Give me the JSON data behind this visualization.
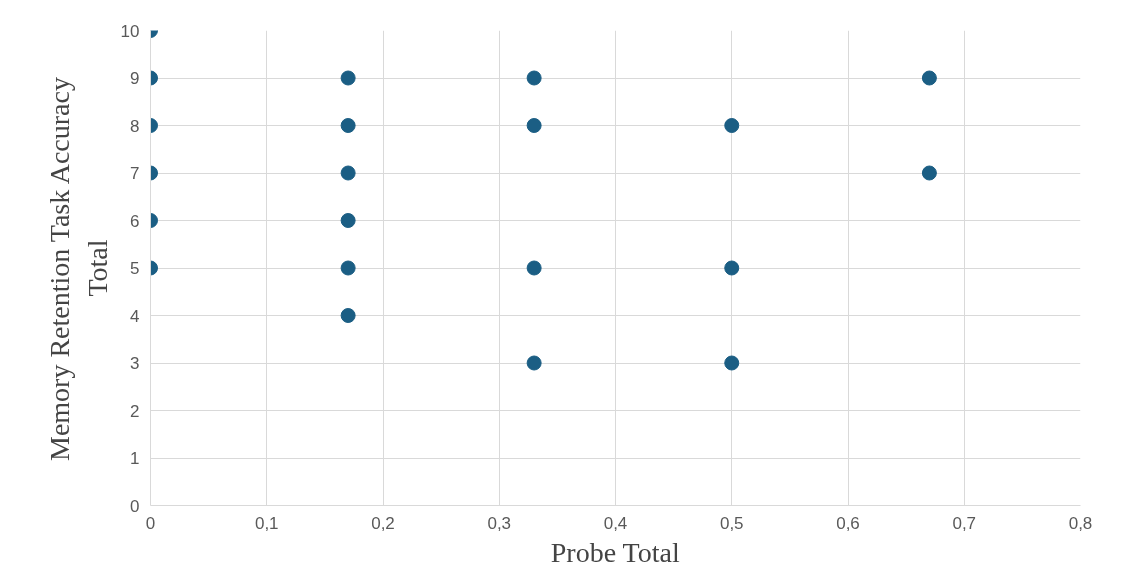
{
  "chart_data": {
    "type": "scatter",
    "xlabel": "Probe Total",
    "ylabel": "Memory Retention Task Accuracy\nTotal",
    "series": [
      {
        "color": "#1b5e84",
        "x": [
          0,
          0,
          0,
          0,
          0,
          0,
          0.17,
          0.17,
          0.17,
          0.17,
          0.17,
          0.17,
          0.33,
          0.33,
          0.33,
          0.33,
          0.5,
          0.5,
          0.5,
          0.67,
          0.67
        ],
        "values": [
          10,
          9,
          8,
          7,
          6,
          5,
          9,
          8,
          7,
          6,
          5,
          4,
          9,
          8,
          5,
          3,
          8,
          5,
          3,
          9,
          7
        ]
      }
    ],
    "xlim": [
      0,
      0.8
    ],
    "ylim": [
      0,
      10
    ],
    "xticks": [
      {
        "value": 0,
        "label": "0"
      },
      {
        "value": 0.1,
        "label": "0,1"
      },
      {
        "value": 0.2,
        "label": "0,2"
      },
      {
        "value": 0.3,
        "label": "0,3"
      },
      {
        "value": 0.4,
        "label": "0,4"
      },
      {
        "value": 0.5,
        "label": "0,5"
      },
      {
        "value": 0.6,
        "label": "0,6"
      },
      {
        "value": 0.7,
        "label": "0,7"
      },
      {
        "value": 0.8,
        "label": "0,8"
      }
    ],
    "yticks": [
      0,
      1,
      2,
      3,
      4,
      5,
      6,
      7,
      8,
      9,
      10
    ],
    "grid": true,
    "marker": "circle"
  }
}
